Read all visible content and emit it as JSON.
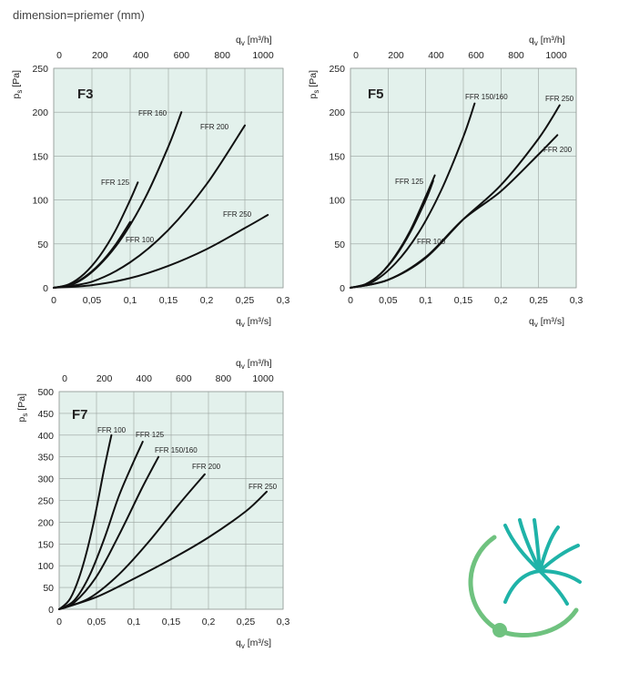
{
  "caption": "dimension=priemer (mm)",
  "colors": {
    "plot_background": "#e3f1ec",
    "curve": "#111111",
    "logo_teal": "#1fb3a8",
    "logo_green": "#6fc27f"
  },
  "chart_data": [
    {
      "type": "line",
      "title": "F3",
      "xlabel": "q",
      "xlabel_sub": "v",
      "xlabel_unit": "[m³/s]",
      "x2label": "q",
      "x2label_sub": "v",
      "x2label_unit": "[m³/h]",
      "ylabel": "p",
      "ylabel_sub": "s",
      "ylabel_unit": "[Pa]",
      "xlim": [
        0,
        0.3
      ],
      "ylim": [
        0,
        250
      ],
      "x_ticks": [
        0,
        0.05,
        0.1,
        0.15,
        0.2,
        0.25,
        0.3
      ],
      "x_tick_labels": [
        "0",
        "0,05",
        "0,1",
        "0,15",
        "0,2",
        "0,25",
        "0,3"
      ],
      "x2_ticks": [
        "0",
        "200",
        "400",
        "600",
        "800",
        "1000"
      ],
      "y_ticks": [
        "0",
        "50",
        "100",
        "150",
        "200",
        "250"
      ],
      "y_tick_values": [
        0,
        50,
        100,
        150,
        200,
        250
      ],
      "grid": true,
      "series": [
        {
          "name": "FFR 100",
          "x": [
            0,
            0.02,
            0.04,
            0.06,
            0.08,
            0.1
          ],
          "y": [
            0,
            3,
            12,
            27,
            48,
            75
          ]
        },
        {
          "name": "FFR 125",
          "x": [
            0,
            0.02,
            0.04,
            0.06,
            0.08,
            0.1,
            0.11
          ],
          "y": [
            0,
            4,
            16,
            36,
            64,
            100,
            120
          ]
        },
        {
          "name": "FFR 160",
          "x": [
            0,
            0.03,
            0.06,
            0.09,
            0.12,
            0.15,
            0.167
          ],
          "y": [
            0,
            6,
            26,
            58,
            103,
            161,
            200
          ]
        },
        {
          "name": "FFR 200",
          "x": [
            0,
            0.05,
            0.1,
            0.15,
            0.2,
            0.25
          ],
          "y": [
            0,
            7,
            29,
            66,
            118,
            185
          ]
        },
        {
          "name": "FFR 250",
          "x": [
            0,
            0.05,
            0.1,
            0.15,
            0.2,
            0.25,
            0.28
          ],
          "y": [
            0,
            3,
            11,
            25,
            44,
            68,
            83
          ]
        }
      ]
    },
    {
      "type": "line",
      "title": "F5",
      "xlabel": "q",
      "xlabel_sub": "v",
      "xlabel_unit": "[m³/s]",
      "x2label": "q",
      "x2label_sub": "v",
      "x2label_unit": "[m³/h]",
      "ylabel": "p",
      "ylabel_sub": "s",
      "ylabel_unit": "[Pa]",
      "xlim": [
        0,
        0.3
      ],
      "ylim": [
        0,
        250
      ],
      "x_ticks": [
        0,
        0.05,
        0.1,
        0.15,
        0.2,
        0.25,
        0.3
      ],
      "x_tick_labels": [
        "0",
        "0,05",
        "0,1",
        "0,15",
        "0,2",
        "0,25",
        "0,3"
      ],
      "x2_ticks": [
        "0",
        "200",
        "400",
        "600",
        "800",
        "1000"
      ],
      "y_ticks": [
        "0",
        "50",
        "100",
        "150",
        "200",
        "250"
      ],
      "y_tick_values": [
        0,
        50,
        100,
        150,
        200,
        250
      ],
      "grid": true,
      "series": [
        {
          "name": "FFR 100",
          "x": [
            0,
            0.02,
            0.04,
            0.06,
            0.08,
            0.1,
            0.11
          ],
          "y": [
            0,
            4,
            16,
            36,
            64,
            100,
            122
          ]
        },
        {
          "name": "FFR 125",
          "x": [
            0,
            0.02,
            0.04,
            0.06,
            0.08,
            0.1,
            0.112
          ],
          "y": [
            0,
            4,
            16,
            37,
            66,
            104,
            128
          ]
        },
        {
          "name": "FFR 150/160",
          "x": [
            0,
            0.03,
            0.06,
            0.09,
            0.12,
            0.15,
            0.165
          ],
          "y": [
            0,
            7,
            28,
            62,
            110,
            172,
            210
          ]
        },
        {
          "name": "FFR 200",
          "x": [
            0,
            0.05,
            0.1,
            0.15,
            0.2,
            0.25,
            0.275
          ],
          "y": [
            0,
            9,
            35,
            78,
            110,
            152,
            174
          ]
        },
        {
          "name": "FFR 250",
          "x": [
            0,
            0.05,
            0.1,
            0.15,
            0.2,
            0.25,
            0.278
          ],
          "y": [
            0,
            9,
            34,
            78,
            117,
            170,
            208
          ]
        }
      ]
    },
    {
      "type": "line",
      "title": "F7",
      "xlabel": "q",
      "xlabel_sub": "v",
      "xlabel_unit": "[m³/s]",
      "x2label": "q",
      "x2label_sub": "v",
      "x2label_unit": "[m³/h]",
      "ylabel": "p",
      "ylabel_sub": "s",
      "ylabel_unit": "[Pa]",
      "xlim": [
        0,
        0.3
      ],
      "ylim": [
        0,
        500
      ],
      "x_ticks": [
        0,
        0.05,
        0.1,
        0.15,
        0.2,
        0.25,
        0.3
      ],
      "x_tick_labels": [
        "0",
        "0,05",
        "0,1",
        "0,15",
        "0,2",
        "0,25",
        "0,3"
      ],
      "x2_ticks": [
        "0",
        "200",
        "400",
        "600",
        "800",
        "1000"
      ],
      "y_ticks": [
        "0",
        "50",
        "100",
        "150",
        "200",
        "250",
        "300",
        "350",
        "400",
        "450",
        "500"
      ],
      "y_tick_values": [
        0,
        50,
        100,
        150,
        200,
        250,
        300,
        350,
        400,
        450,
        500
      ],
      "grid": true,
      "series": [
        {
          "name": "FFR 100",
          "x": [
            0,
            0.015,
            0.03,
            0.045,
            0.06,
            0.07
          ],
          "y": [
            0,
            25,
            90,
            190,
            320,
            400
          ]
        },
        {
          "name": "FFR 125",
          "x": [
            0,
            0.02,
            0.04,
            0.06,
            0.08,
            0.1,
            0.112
          ],
          "y": [
            0,
            20,
            75,
            160,
            260,
            340,
            385
          ]
        },
        {
          "name": "FFR 150/160",
          "x": [
            0,
            0.02,
            0.05,
            0.08,
            0.11,
            0.133
          ],
          "y": [
            0,
            15,
            75,
            170,
            275,
            350
          ]
        },
        {
          "name": "FFR 200",
          "x": [
            0,
            0.04,
            0.08,
            0.12,
            0.16,
            0.195
          ],
          "y": [
            0,
            25,
            80,
            155,
            240,
            310
          ]
        },
        {
          "name": "FFR 250",
          "x": [
            0,
            0.05,
            0.1,
            0.15,
            0.2,
            0.25,
            0.278
          ],
          "y": [
            0,
            28,
            70,
            115,
            165,
            225,
            270
          ]
        }
      ]
    }
  ]
}
